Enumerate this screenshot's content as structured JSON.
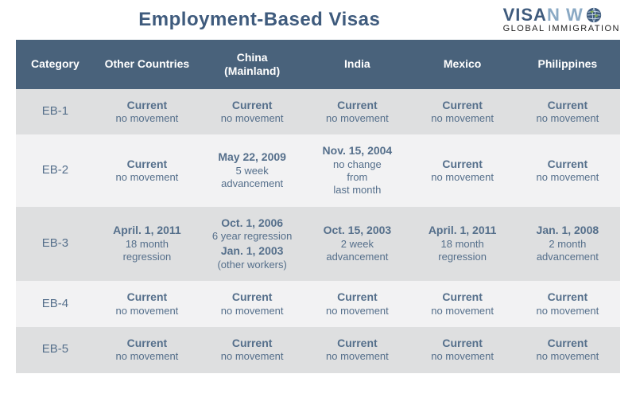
{
  "title": "Employment-Based Visas",
  "brand": {
    "visa": "VISA",
    "now": "N   W",
    "sub": "GLOBAL IMMIGRATION"
  },
  "colors": {
    "header_bg": "#49627b",
    "row_odd": "#dedfe0",
    "row_even": "#f2f2f3",
    "text_primary": "#556f8b",
    "title_color": "#3f5b7d"
  },
  "columns": [
    "Category",
    "Other Countries",
    "China\n(Mainland)",
    "India",
    "Mexico",
    "Philippines"
  ],
  "rows": [
    {
      "category": "EB-1",
      "cells": [
        {
          "main": "Current",
          "sub": "no movement"
        },
        {
          "main": "Current",
          "sub": "no movement"
        },
        {
          "main": "Current",
          "sub": "no movement"
        },
        {
          "main": "Current",
          "sub": "no movement"
        },
        {
          "main": "Current",
          "sub": "no movement"
        }
      ]
    },
    {
      "category": "EB-2",
      "cells": [
        {
          "main": "Current",
          "sub": "no movement"
        },
        {
          "main": "May 22, 2009",
          "sub": "5 week\nadvancement"
        },
        {
          "main": "Nov. 15, 2004",
          "sub": "no change\nfrom\nlast month"
        },
        {
          "main": "Current",
          "sub": "no movement"
        },
        {
          "main": "Current",
          "sub": "no movement"
        }
      ]
    },
    {
      "category": "EB-3",
      "cells": [
        {
          "main": "April. 1, 2011",
          "sub": "18 month\nregression"
        },
        {
          "main": "Oct. 1, 2006",
          "sub": "6 year regression",
          "main2": "Jan. 1, 2003",
          "sub2": "(other workers)"
        },
        {
          "main": "Oct. 15, 2003",
          "sub": "2 week\nadvancement"
        },
        {
          "main": "April. 1, 2011",
          "sub": "18 month\nregression"
        },
        {
          "main": "Jan. 1, 2008",
          "sub": "2 month\nadvancement"
        }
      ]
    },
    {
      "category": "EB-4",
      "cells": [
        {
          "main": "Current",
          "sub": "no movement"
        },
        {
          "main": "Current",
          "sub": "no movement"
        },
        {
          "main": "Current",
          "sub": "no movement"
        },
        {
          "main": "Current",
          "sub": "no movement"
        },
        {
          "main": "Current",
          "sub": "no movement"
        }
      ]
    },
    {
      "category": "EB-5",
      "cells": [
        {
          "main": "Current",
          "sub": "no movement"
        },
        {
          "main": "Current",
          "sub": "no movement"
        },
        {
          "main": "Current",
          "sub": "no movement"
        },
        {
          "main": "Current",
          "sub": "no movement"
        },
        {
          "main": "Current",
          "sub": "no movement"
        }
      ]
    }
  ]
}
